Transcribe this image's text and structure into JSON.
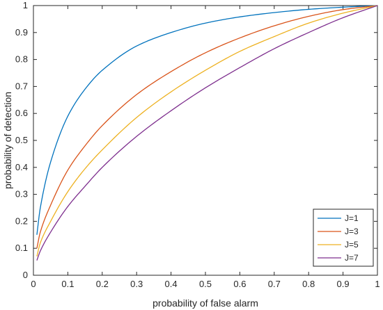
{
  "chart_data": {
    "type": "line",
    "xlabel": "probability of false alarm",
    "ylabel": "probability of detection",
    "xlim": [
      0,
      1
    ],
    "ylim": [
      0,
      1
    ],
    "x_ticks": [
      "0",
      "0.1",
      "0.2",
      "0.3",
      "0.4",
      "0.5",
      "0.6",
      "0.7",
      "0.8",
      "0.9",
      "1"
    ],
    "y_ticks": [
      "0",
      "0.1",
      "0.2",
      "0.3",
      "0.4",
      "0.5",
      "0.6",
      "0.7",
      "0.8",
      "0.9",
      "1"
    ],
    "grid": false,
    "legend_position": "bottom-right",
    "x": [
      0.01,
      0.02,
      0.05,
      0.1,
      0.15,
      0.2,
      0.3,
      0.4,
      0.5,
      0.6,
      0.7,
      0.8,
      0.9,
      1.0
    ],
    "series": [
      {
        "name": "J=1",
        "color": "#0072BD",
        "values": [
          0.15,
          0.25,
          0.42,
          0.59,
          0.69,
          0.76,
          0.85,
          0.9,
          0.935,
          0.958,
          0.974,
          0.986,
          0.994,
          1.0
        ]
      },
      {
        "name": "J=3",
        "color": "#D95319",
        "values": [
          0.1,
          0.16,
          0.26,
          0.39,
          0.48,
          0.555,
          0.67,
          0.755,
          0.825,
          0.88,
          0.925,
          0.96,
          0.985,
          1.0
        ]
      },
      {
        "name": "J=5",
        "color": "#EDB120",
        "values": [
          0.07,
          0.12,
          0.2,
          0.31,
          0.395,
          0.465,
          0.585,
          0.68,
          0.76,
          0.83,
          0.885,
          0.935,
          0.972,
          1.0
        ]
      },
      {
        "name": "J=7",
        "color": "#7E2F8E",
        "values": [
          0.055,
          0.09,
          0.16,
          0.255,
          0.33,
          0.4,
          0.515,
          0.61,
          0.695,
          0.77,
          0.84,
          0.9,
          0.955,
          1.0
        ]
      }
    ]
  }
}
